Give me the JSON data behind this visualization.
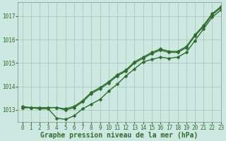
{
  "title": "Graphe pression niveau de la mer (hPa)",
  "background_color": "#cce8e0",
  "plot_bg_color": "#cce8e0",
  "grid_color": "#aaccbb",
  "line_color": "#2d6e2d",
  "xlim": [
    -0.5,
    23
  ],
  "ylim": [
    1012.5,
    1017.6
  ],
  "yticks": [
    1013,
    1014,
    1015,
    1016,
    1017
  ],
  "xticks": [
    0,
    1,
    2,
    3,
    4,
    5,
    6,
    7,
    8,
    9,
    10,
    11,
    12,
    13,
    14,
    15,
    16,
    17,
    18,
    19,
    20,
    21,
    22,
    23
  ],
  "line1_x": [
    0,
    1,
    2,
    3,
    4,
    5,
    6,
    7,
    8,
    9,
    10,
    11,
    12,
    13,
    14,
    15,
    16,
    17,
    18,
    19,
    20,
    21,
    22,
    23
  ],
  "line1_y": [
    1013.1,
    1013.1,
    1013.05,
    1013.05,
    1012.65,
    1012.6,
    1012.75,
    1013.05,
    1013.25,
    1013.45,
    1013.8,
    1014.1,
    1014.45,
    1014.75,
    1015.05,
    1015.15,
    1015.25,
    1015.2,
    1015.25,
    1015.45,
    1015.95,
    1016.45,
    1016.95,
    1017.25
  ],
  "line2_x": [
    0,
    1,
    2,
    3,
    4,
    5,
    6,
    7,
    8,
    9,
    10,
    11,
    12,
    13,
    14,
    15,
    16,
    17,
    18,
    19,
    20,
    21,
    22,
    23
  ],
  "line2_y": [
    1013.1,
    1013.1,
    1013.1,
    1013.1,
    1013.1,
    1013.0,
    1013.1,
    1013.35,
    1013.7,
    1013.9,
    1014.15,
    1014.45,
    1014.65,
    1015.0,
    1015.2,
    1015.4,
    1015.55,
    1015.45,
    1015.45,
    1015.65,
    1016.15,
    1016.55,
    1017.05,
    1017.35
  ],
  "line3_x": [
    0,
    1,
    2,
    3,
    4,
    5,
    6,
    7,
    8,
    9,
    10,
    11,
    12,
    13,
    14,
    15,
    16,
    17,
    18,
    19,
    20,
    21,
    22,
    23
  ],
  "line3_y": [
    1013.15,
    1013.1,
    1013.1,
    1013.1,
    1013.1,
    1013.05,
    1013.15,
    1013.4,
    1013.75,
    1013.95,
    1014.2,
    1014.5,
    1014.7,
    1015.05,
    1015.25,
    1015.45,
    1015.6,
    1015.5,
    1015.5,
    1015.7,
    1016.2,
    1016.6,
    1017.1,
    1017.4
  ],
  "marker": "D",
  "marker_size": 2.5,
  "linewidth": 1.0,
  "title_fontsize": 7,
  "tick_fontsize": 5.5
}
